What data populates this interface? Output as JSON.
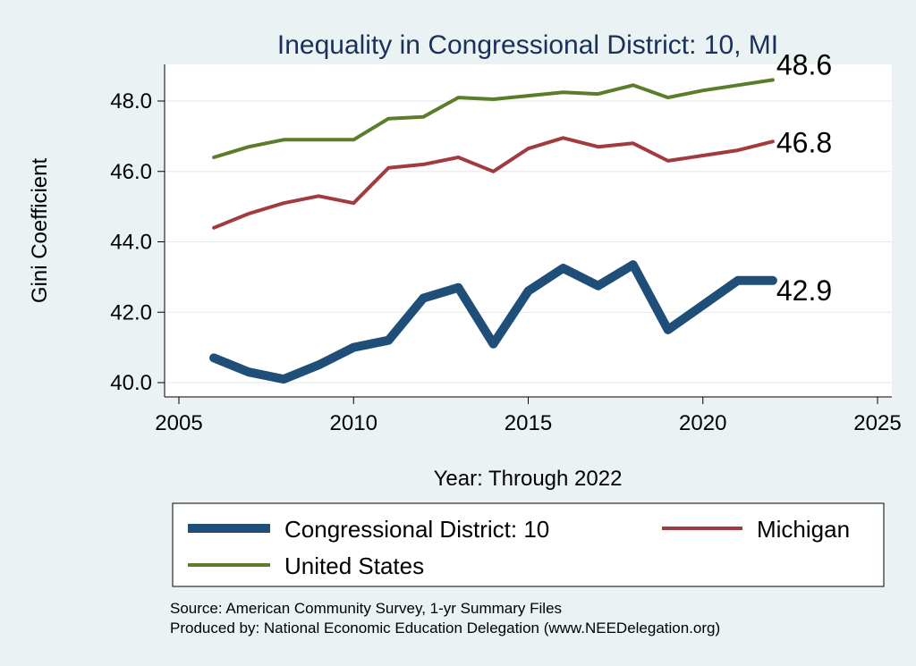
{
  "chart_data": {
    "type": "line",
    "title": "Inequality in Congressional District:  10, MI",
    "xlabel": "Year: Through 2022",
    "ylabel": "Gini Coefficient",
    "xlim": [
      2005,
      2025
    ],
    "ylim": [
      40.0,
      48.6
    ],
    "x_ticks": [
      2005,
      2010,
      2015,
      2020,
      2025
    ],
    "y_ticks": [
      40.0,
      42.0,
      44.0,
      46.0,
      48.0
    ],
    "y_tick_labels": [
      "40.0",
      "42.0",
      "44.0",
      "46.0",
      "48.0"
    ],
    "grid": "horizontal",
    "series": [
      {
        "name": "Congressional District:  10",
        "color": "#1f4e79",
        "x": [
          2006,
          2007,
          2008,
          2009,
          2010,
          2011,
          2012,
          2013,
          2014,
          2015,
          2016,
          2017,
          2018,
          2019,
          2020,
          2021,
          2022
        ],
        "values": [
          40.7,
          40.3,
          40.1,
          40.5,
          41.0,
          41.2,
          42.4,
          42.7,
          41.1,
          42.6,
          43.25,
          42.75,
          43.35,
          41.5,
          42.2,
          42.9,
          42.9
        ],
        "end_label": "42.9"
      },
      {
        "name": "Michigan",
        "color": "#a23a3e",
        "x": [
          2006,
          2007,
          2008,
          2009,
          2010,
          2011,
          2012,
          2013,
          2014,
          2015,
          2016,
          2017,
          2018,
          2019,
          2020,
          2021,
          2022
        ],
        "values": [
          44.4,
          44.8,
          45.1,
          45.3,
          45.1,
          46.1,
          46.2,
          46.4,
          46.0,
          46.65,
          46.95,
          46.7,
          46.8,
          46.3,
          46.45,
          46.6,
          46.85
        ],
        "end_label": "46.8"
      },
      {
        "name": "United States",
        "color": "#5a7d2a",
        "x": [
          2006,
          2007,
          2008,
          2009,
          2010,
          2011,
          2012,
          2013,
          2014,
          2015,
          2016,
          2017,
          2018,
          2019,
          2020,
          2021,
          2022
        ],
        "values": [
          46.4,
          46.7,
          46.9,
          46.9,
          46.9,
          47.5,
          47.55,
          48.1,
          48.05,
          48.15,
          48.25,
          48.2,
          48.45,
          48.1,
          48.3,
          48.45,
          48.6
        ],
        "end_label": "48.6"
      }
    ],
    "legend_position": "bottom",
    "source_lines": [
      "Source: American Community Survey, 1-yr Summary Files",
      "Produced by: National Economic Education Delegation (www.NEEDelegation.org)"
    ]
  }
}
